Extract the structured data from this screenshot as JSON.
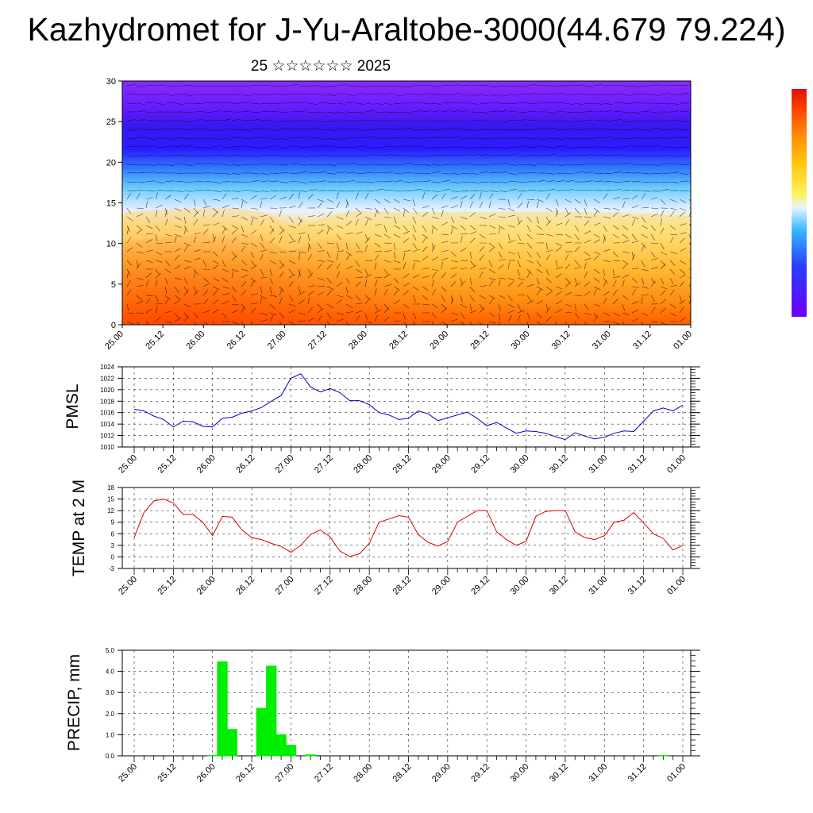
{
  "header": {
    "title": "Kazhydromet for J-Yu-Araltobe-3000(44.679 79.224)",
    "subtitle": "25 ☆☆☆☆☆☆ 2025"
  },
  "x_ticks": [
    "25.00",
    "25.12",
    "26.00",
    "26.12",
    "27.00",
    "27.12",
    "28.00",
    "28.12",
    "29.00",
    "29.12",
    "30.00",
    "30.12",
    "31.00",
    "31.12",
    "01.00"
  ],
  "chart_data": [
    {
      "type": "heatmap",
      "title": "",
      "yticks": [
        "0",
        "5",
        "10",
        "15",
        "20",
        "25",
        "30"
      ],
      "ylim": [
        0,
        30
      ],
      "colorbar": [
        "#6a00ff",
        "#2a3cff",
        "#34b8ff",
        "#e8f4ff",
        "#fff25a",
        "#ffc40a",
        "#ff8a08",
        "#ff4a00",
        "#e01000"
      ],
      "colors": {
        "low": "#ff6a00",
        "mid": "#ffe27a",
        "transition": "#5ec8ff",
        "high": "#3a1cff",
        "top": "#7a22ff"
      }
    },
    {
      "type": "line",
      "ylabel": "PMSL",
      "ylim": [
        1010,
        1024
      ],
      "yticks": [
        "1010",
        "1012",
        "1014",
        "1016",
        "1018",
        "1020",
        "1022",
        "1024"
      ],
      "color": "#0000cc",
      "values": [
        1016.6,
        1016.3,
        1015.4,
        1014.8,
        1013.5,
        1014.5,
        1014.4,
        1013.6,
        1013.5,
        1015,
        1015.2,
        1015.9,
        1016.3,
        1016.9,
        1018,
        1019,
        1022,
        1022.8,
        1020.5,
        1019.6,
        1020.2,
        1019.5,
        1018.1,
        1018.1,
        1017.4,
        1016,
        1015.6,
        1014.8,
        1015,
        1016.3,
        1015.8,
        1014.6,
        1015.1,
        1015.6,
        1016.1,
        1015,
        1013.7,
        1014.3,
        1013.3,
        1012.4,
        1012.8,
        1012.7,
        1012.4,
        1011.8,
        1011.3,
        1012.5,
        1011.9,
        1011.4,
        1011.7,
        1012.4,
        1012.8,
        1012.7,
        1014.5,
        1016.3,
        1016.8,
        1016.3,
        1017.3
      ]
    },
    {
      "type": "line",
      "ylabel": "TEMP at 2 M",
      "ylim": [
        -3,
        18
      ],
      "yticks": [
        "-3",
        "0",
        "3",
        "6",
        "9",
        "12",
        "15",
        "18"
      ],
      "color": "#dd0000",
      "values": [
        5,
        11.5,
        14.5,
        15,
        14,
        11,
        11,
        9,
        5.5,
        10.5,
        10.3,
        7,
        5,
        4.5,
        3.5,
        2.7,
        1.2,
        3,
        5.8,
        7,
        5.2,
        1.5,
        0.1,
        0.8,
        3.5,
        9,
        9.8,
        10.7,
        10.3,
        5.8,
        3.8,
        2.8,
        4,
        9,
        10.5,
        12,
        12,
        6.5,
        4.5,
        3,
        4,
        10.5,
        11.8,
        12,
        12,
        6.5,
        5,
        4.5,
        5.5,
        9,
        9.5,
        11.5,
        8.8,
        6,
        4.8,
        1.8,
        3
      ]
    },
    {
      "type": "bar",
      "ylabel": "PRECIP, mm",
      "ylim": [
        0,
        5
      ],
      "yticks": [
        "0.0",
        "1.0",
        "2.0",
        "3.0",
        "4.0",
        "5.0"
      ],
      "color": "#00ee00",
      "values": [
        0,
        0,
        0,
        0,
        0,
        0,
        0,
        0,
        0.02,
        4.45,
        1.25,
        0,
        0,
        2.25,
        4.25,
        1.0,
        0.5,
        0,
        0.05,
        0,
        0,
        0,
        0,
        0,
        0,
        0,
        0,
        0,
        0,
        0,
        0,
        0,
        0,
        0,
        0,
        0,
        0,
        0,
        0,
        0,
        0,
        0,
        0,
        0,
        0,
        0,
        0,
        0,
        0,
        0,
        0,
        0,
        0,
        0,
        0.02,
        0,
        0
      ]
    }
  ]
}
